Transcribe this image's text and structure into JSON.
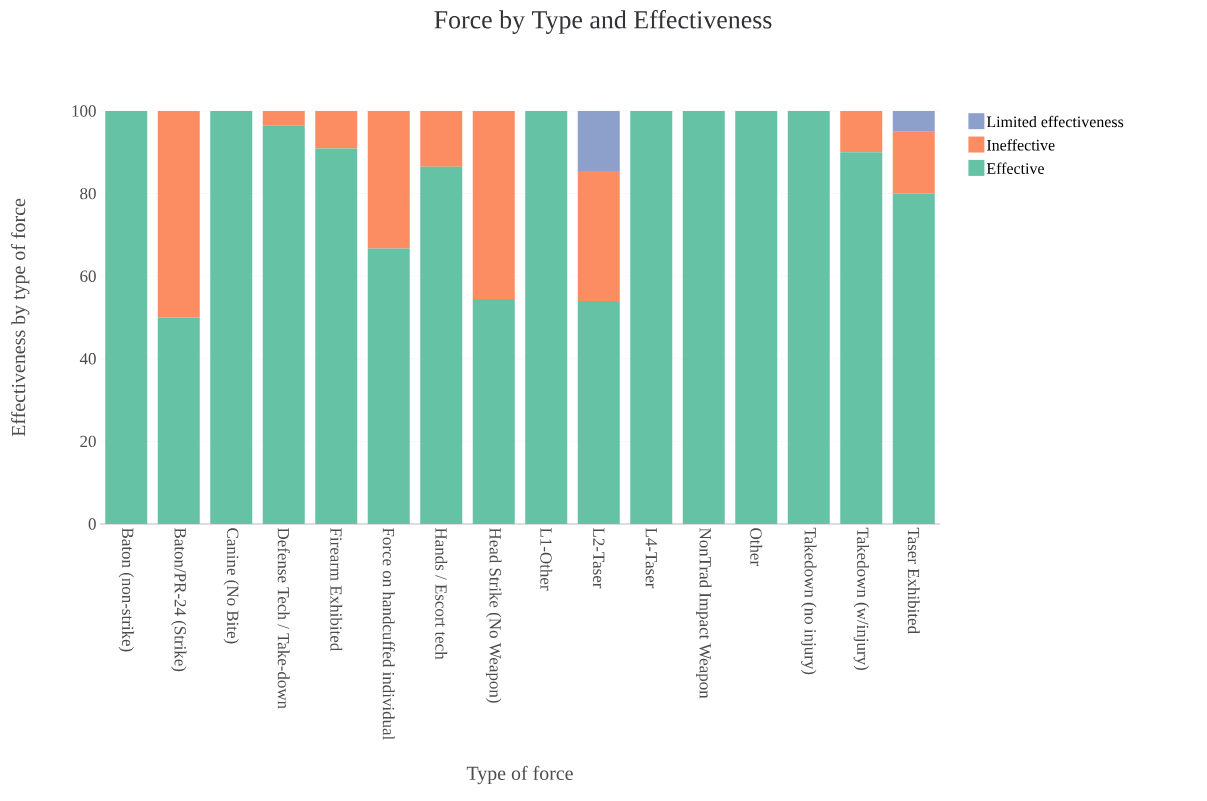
{
  "chart_data": {
    "type": "bar",
    "stacked": true,
    "title": "Force by Type and Effectiveness",
    "xlabel": "Type of force",
    "ylabel": "Effectiveness by type of force",
    "categories": [
      "Baton (non-strike)",
      "Baton/PR-24 (Strike)",
      "Canine (No Bite)",
      "Defense Tech / Take-down",
      "Firearm Exhibited",
      "Force on handcuffed individual",
      "Hands / Escort tech",
      "Head Strike (No Weapon)",
      "L1-Other",
      "L2-Taser",
      "L4-Taser",
      "NonTrad Impact Weapon",
      "Other",
      "Takedown (no injury)",
      "Takedown (w/injury)",
      "Taser Exhibited"
    ],
    "series": [
      {
        "name": "Effective",
        "color": "#66c2a5",
        "values": [
          100,
          50,
          100,
          96.4,
          90.9,
          66.7,
          86.5,
          54.5,
          100,
          54,
          100,
          100,
          100,
          100,
          90,
          80
        ]
      },
      {
        "name": "Ineffective",
        "color": "#fc8d62",
        "values": [
          0,
          50,
          0,
          3.6,
          9.1,
          33.3,
          13.5,
          45.5,
          0,
          31.5,
          0,
          0,
          0,
          0,
          10,
          15
        ]
      },
      {
        "name": "Limited effectiveness",
        "color": "#8da0cb",
        "values": [
          0,
          0,
          0,
          0,
          0,
          0,
          0,
          0,
          0,
          14.5,
          0,
          0,
          0,
          0,
          0,
          5
        ]
      }
    ],
    "ylim": [
      0,
      100
    ],
    "yticks": [
      0,
      20,
      40,
      60,
      80,
      100
    ],
    "grid": "y",
    "legend": "top right"
  }
}
